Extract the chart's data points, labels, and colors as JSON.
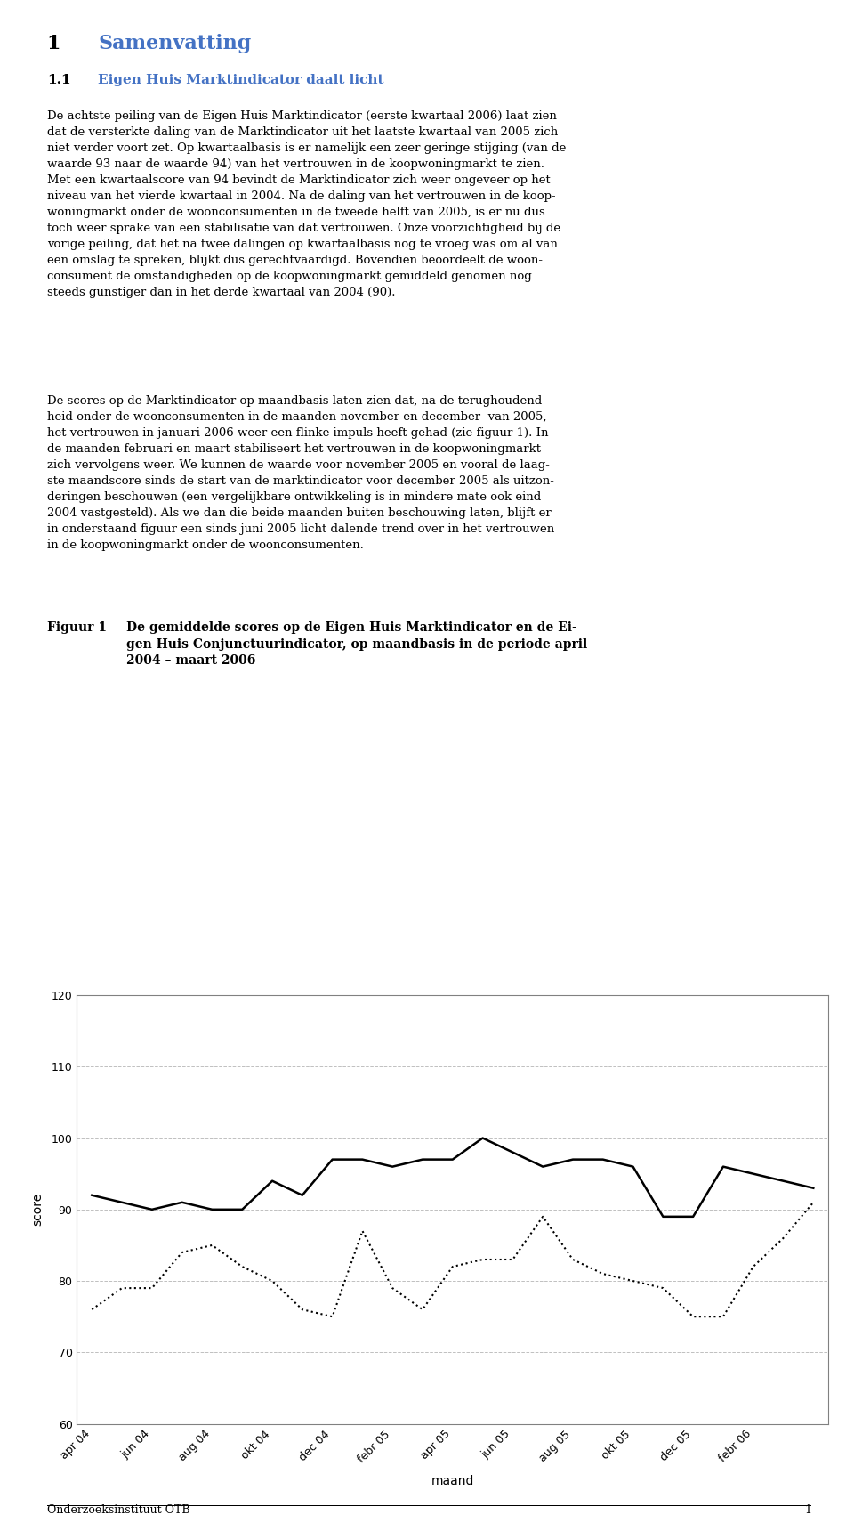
{
  "x_labels": [
    "apr 04",
    "jun 04",
    "aug 04",
    "okt 04",
    "dec 04",
    "febr 05",
    "apr 05",
    "jun 05",
    "aug 05",
    "okt 05",
    "dec 05",
    "febr 06"
  ],
  "x_positions": [
    0,
    2,
    4,
    6,
    8,
    10,
    12,
    14,
    16,
    18,
    20,
    22
  ],
  "marktindicator": [
    92,
    91,
    90,
    91,
    90,
    90,
    94,
    92,
    97,
    97,
    96,
    97,
    97,
    100,
    98,
    96,
    97,
    97,
    96,
    89,
    89,
    96,
    95,
    94,
    93
  ],
  "conjunctuurindicator": [
    76,
    79,
    79,
    84,
    85,
    82,
    80,
    76,
    75,
    87,
    79,
    76,
    82,
    83,
    83,
    89,
    83,
    81,
    80,
    79,
    75,
    75,
    82,
    86,
    91
  ],
  "ylim": [
    60,
    120
  ],
  "yticks": [
    60,
    70,
    80,
    90,
    100,
    110,
    120
  ],
  "ylabel": "score",
  "xlabel": "maand",
  "legend_solid": "eigen huis marktindicator",
  "legend_dashed": "eigen huis conjunctuurindicator",
  "background_color": "#ffffff",
  "grid_color": "#c0c0c0",
  "line_color": "#000000"
}
